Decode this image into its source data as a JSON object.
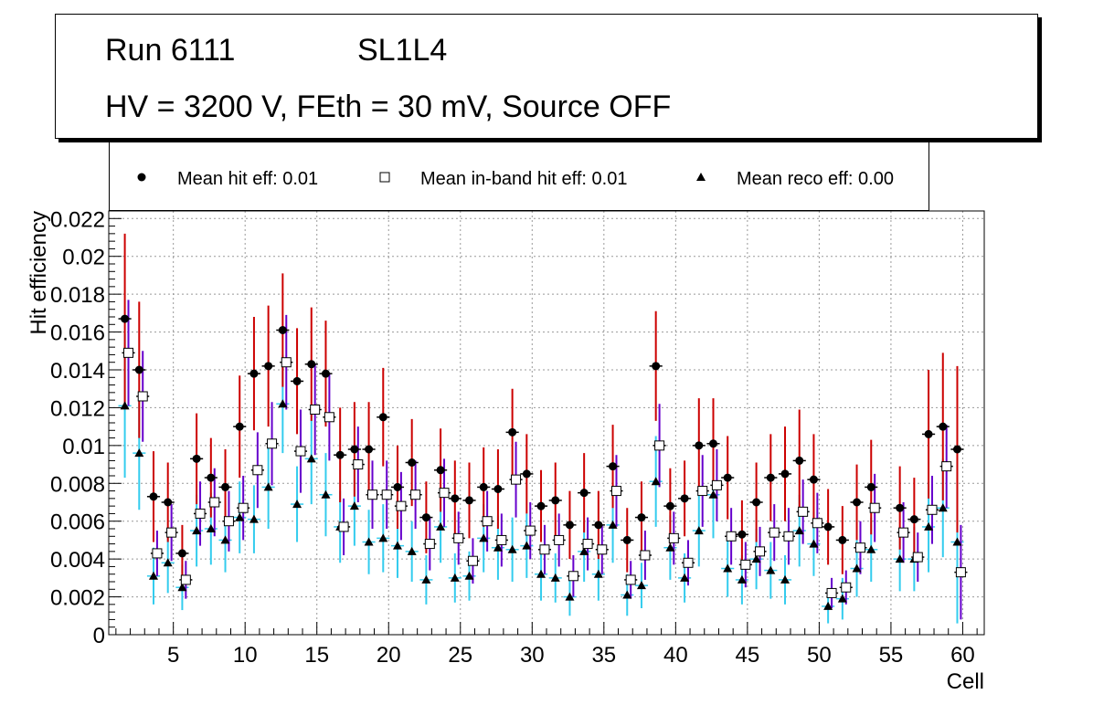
{
  "title": {
    "run": "Run 6111",
    "superlayer": "SL1L4",
    "conditions": "HV = 3200 V, FEth = 30 mV, Source OFF"
  },
  "legend": [
    {
      "label": "Mean hit  eff: 0.01",
      "marker": "filled-circle"
    },
    {
      "label": "Mean in-band hit eff: 0.01",
      "marker": "open-square"
    },
    {
      "label": "Mean reco eff: 0.00",
      "marker": "filled-triangle"
    }
  ],
  "colors": {
    "hit_error": "#cc0000",
    "inband_error": "#6600cc",
    "reco_error": "#33ccee",
    "grid": "#999999"
  },
  "chart_data": {
    "type": "scatter",
    "xlabel": "Cell",
    "ylabel": "Hit efficiency",
    "xlim": [
      0.5,
      61.5
    ],
    "ylim": [
      0,
      0.0224
    ],
    "xticks": [
      5,
      10,
      15,
      20,
      25,
      30,
      35,
      40,
      45,
      50,
      55,
      60
    ],
    "yticks": [
      0,
      0.002,
      0.004,
      0.006,
      0.008,
      0.01,
      0.012,
      0.014,
      0.016,
      0.018,
      0.02,
      0.022
    ],
    "ytick_labels": [
      "0",
      "0.002",
      "0.004",
      "0.006",
      "0.008",
      "0.01",
      "0.012",
      "0.014",
      "0.016",
      "0.018",
      "0.02",
      "0.022"
    ],
    "grid": true,
    "series": [
      {
        "name": "Mean hit  eff: 0.01",
        "x": [
          2,
          3,
          4,
          5,
          6,
          7,
          8,
          9,
          10,
          11,
          12,
          13,
          14,
          15,
          16,
          17,
          18,
          19,
          20,
          21,
          22,
          23,
          24,
          25,
          26,
          27,
          28,
          29,
          30,
          31,
          32,
          33,
          34,
          35,
          36,
          37,
          38,
          39,
          40,
          41,
          42,
          43,
          44,
          45,
          46,
          47,
          48,
          49,
          50,
          51,
          52,
          53,
          54,
          56,
          57,
          58,
          59,
          60
        ],
        "y": [
          0.0167,
          0.014,
          0.0073,
          0.007,
          0.0043,
          0.0093,
          0.0083,
          0.0078,
          0.011,
          0.0138,
          0.0142,
          0.0161,
          0.0134,
          0.0143,
          0.0138,
          0.0095,
          0.0098,
          0.0098,
          0.0115,
          0.0078,
          0.0091,
          0.0062,
          0.0087,
          0.0072,
          0.0071,
          0.0078,
          0.0077,
          0.0107,
          0.0085,
          0.0068,
          0.0071,
          0.0058,
          0.0075,
          0.0058,
          0.0089,
          0.005,
          0.0062,
          0.0142,
          0.0068,
          0.0072,
          0.01,
          0.0101,
          0.0083,
          0.0053,
          0.007,
          0.0083,
          0.0085,
          0.0092,
          0.0082,
          0.0057,
          0.005,
          0.007,
          0.0078,
          0.0067,
          0.0061,
          0.0106,
          0.011,
          0.0098
        ],
        "err": [
          0.0045,
          0.0036,
          0.0024,
          0.0021,
          0.0015,
          0.0024,
          0.0021,
          0.002,
          0.0027,
          0.003,
          0.0032,
          0.003,
          0.0028,
          0.003,
          0.0028,
          0.0025,
          0.0025,
          0.0025,
          0.0026,
          0.0022,
          0.0023,
          0.0019,
          0.0022,
          0.002,
          0.002,
          0.0021,
          0.0021,
          0.0023,
          0.0021,
          0.0019,
          0.002,
          0.0018,
          0.0021,
          0.0018,
          0.0022,
          0.0017,
          0.0019,
          0.0029,
          0.002,
          0.002,
          0.0025,
          0.0024,
          0.0022,
          0.0018,
          0.0021,
          0.0023,
          0.0025,
          0.0027,
          0.0024,
          0.002,
          0.0018,
          0.002,
          0.0025,
          0.0022,
          0.0022,
          0.0034,
          0.0039,
          0.0044
        ]
      },
      {
        "name": "Mean in-band hit eff: 0.01",
        "x": [
          2,
          3,
          4,
          5,
          6,
          7,
          8,
          9,
          10,
          11,
          12,
          13,
          14,
          15,
          16,
          17,
          18,
          19,
          20,
          21,
          22,
          23,
          24,
          25,
          26,
          27,
          28,
          29,
          30,
          31,
          32,
          33,
          34,
          35,
          36,
          37,
          38,
          39,
          40,
          41,
          42,
          43,
          44,
          45,
          46,
          47,
          48,
          49,
          50,
          51,
          52,
          53,
          54,
          56,
          57,
          58,
          59,
          60
        ],
        "y": [
          0.0149,
          0.0126,
          0.0043,
          0.0054,
          0.0029,
          0.0064,
          0.007,
          0.006,
          0.0067,
          0.0087,
          0.0101,
          0.0144,
          0.0097,
          0.0119,
          0.0115,
          0.0057,
          0.009,
          0.0074,
          0.0074,
          0.0068,
          0.0074,
          0.0048,
          0.0075,
          0.0051,
          0.0039,
          0.006,
          0.005,
          0.0082,
          0.0055,
          0.0045,
          0.005,
          0.0031,
          0.0048,
          0.0045,
          0.0076,
          0.0029,
          0.0042,
          0.01,
          0.0051,
          0.0038,
          0.0076,
          0.0079,
          0.0052,
          0.0037,
          0.0044,
          0.0054,
          0.0052,
          0.0065,
          0.0059,
          0.0022,
          0.0025,
          0.0046,
          0.0067,
          0.0054,
          0.0041,
          0.0066,
          0.0089,
          0.0033
        ],
        "err": [
          0.0028,
          0.0024,
          0.0012,
          0.0015,
          0.001,
          0.0017,
          0.0018,
          0.0016,
          0.0017,
          0.002,
          0.0022,
          0.0025,
          0.0022,
          0.0024,
          0.0023,
          0.0015,
          0.002,
          0.0018,
          0.0018,
          0.0018,
          0.0018,
          0.0014,
          0.0018,
          0.0014,
          0.0012,
          0.0016,
          0.0014,
          0.002,
          0.0015,
          0.0013,
          0.0014,
          0.0011,
          0.0014,
          0.0013,
          0.0019,
          0.001,
          0.0013,
          0.0022,
          0.0014,
          0.0012,
          0.0019,
          0.0019,
          0.0015,
          0.0012,
          0.0013,
          0.0015,
          0.0015,
          0.0017,
          0.0016,
          0.0008,
          0.0009,
          0.0014,
          0.0018,
          0.0016,
          0.0013,
          0.0018,
          0.0022,
          0.0025
        ]
      },
      {
        "name": "Mean reco eff: 0.00",
        "x": [
          2,
          3,
          4,
          5,
          6,
          7,
          8,
          9,
          10,
          11,
          12,
          13,
          14,
          15,
          16,
          17,
          18,
          19,
          20,
          21,
          22,
          23,
          24,
          25,
          26,
          27,
          28,
          29,
          30,
          31,
          32,
          33,
          34,
          35,
          36,
          37,
          38,
          39,
          40,
          41,
          42,
          43,
          44,
          45,
          46,
          47,
          48,
          49,
          50,
          51,
          52,
          53,
          54,
          56,
          57,
          58,
          59,
          60
        ],
        "y": [
          0.0121,
          0.0096,
          0.0031,
          0.0038,
          0.0025,
          0.0055,
          0.0056,
          0.005,
          0.0062,
          0.0061,
          0.0078,
          0.0122,
          0.0069,
          0.0093,
          0.0074,
          0.0057,
          0.0068,
          0.0049,
          0.0051,
          0.0047,
          0.0044,
          0.0029,
          0.0057,
          0.003,
          0.0031,
          0.0051,
          0.0046,
          0.0045,
          0.0047,
          0.0032,
          0.003,
          0.002,
          0.0044,
          0.0032,
          0.0058,
          0.0021,
          0.0026,
          0.0081,
          0.0046,
          0.003,
          0.0055,
          0.0074,
          0.0035,
          0.0029,
          0.004,
          0.0034,
          0.0029,
          0.0055,
          0.0048,
          0.0015,
          0.0019,
          0.0035,
          0.0045,
          0.004,
          0.004,
          0.0057,
          0.0067,
          0.0049
        ],
        "err": [
          0.0038,
          0.003,
          0.0015,
          0.0016,
          0.0012,
          0.0019,
          0.0019,
          0.0017,
          0.0019,
          0.0018,
          0.0022,
          0.0026,
          0.002,
          0.0024,
          0.0022,
          0.0019,
          0.0021,
          0.0017,
          0.0018,
          0.0017,
          0.0016,
          0.0013,
          0.0019,
          0.0013,
          0.0013,
          0.0018,
          0.0017,
          0.0017,
          0.0017,
          0.0014,
          0.0013,
          0.001,
          0.0016,
          0.0014,
          0.002,
          0.0011,
          0.0012,
          0.0024,
          0.0017,
          0.0013,
          0.0019,
          0.0023,
          0.0015,
          0.0013,
          0.0016,
          0.0015,
          0.0013,
          0.0019,
          0.0017,
          0.0009,
          0.0011,
          0.0015,
          0.0017,
          0.0017,
          0.0017,
          0.0024,
          0.0026,
          0.0043
        ]
      }
    ]
  }
}
